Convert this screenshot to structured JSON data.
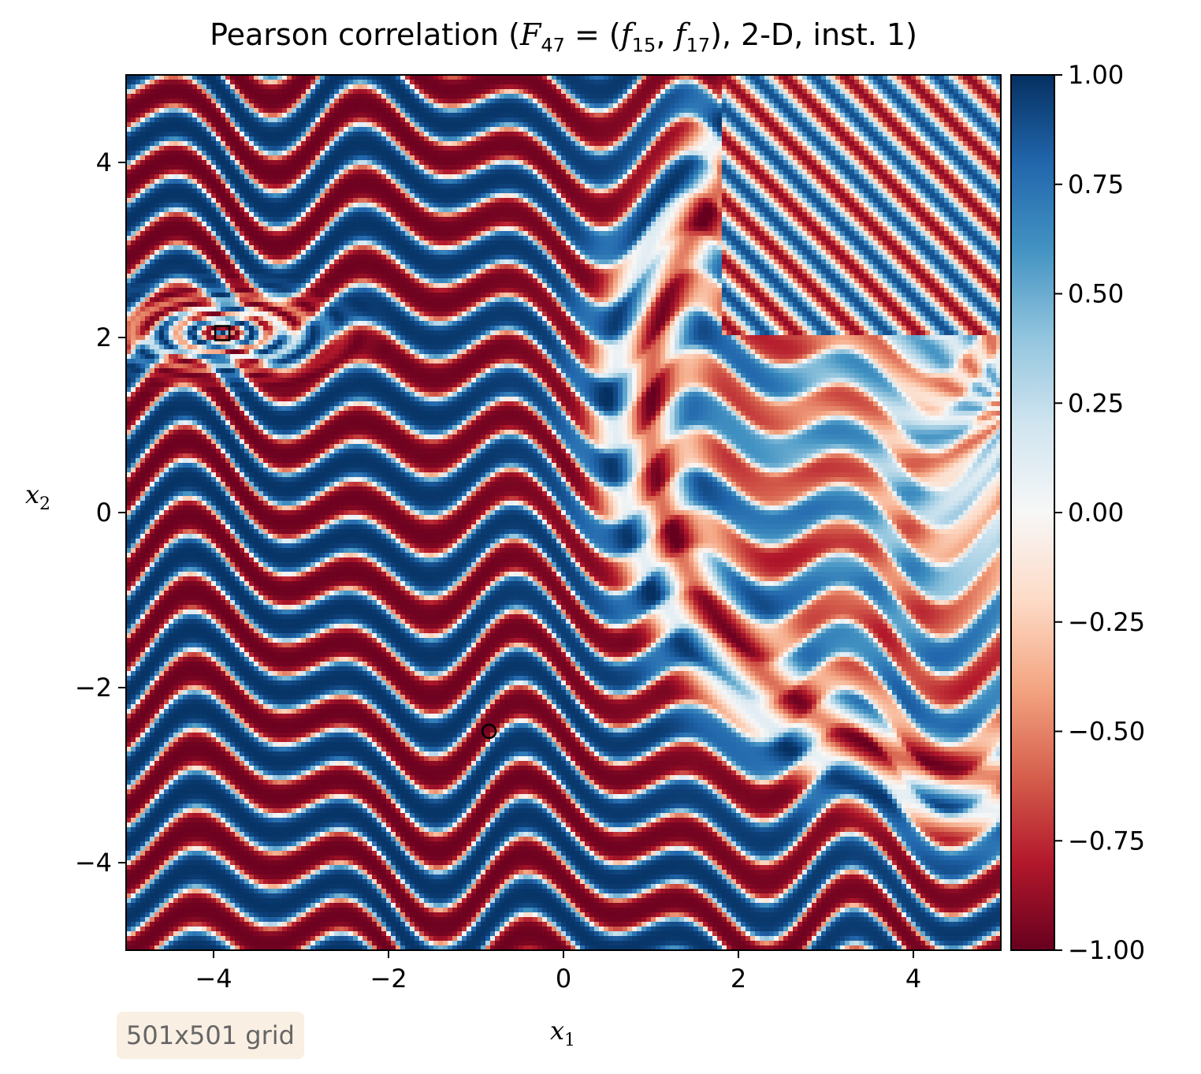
{
  "chart_data": {
    "type": "heatmap",
    "title": {
      "prefix": "Pearson correlation (",
      "F": "F",
      "F_sub": "47",
      "f1": "f",
      "f1_sub": "15",
      "f2": "f",
      "f2_sub": "17",
      "suffix": "), 2-D, inst. 1)"
    },
    "xlabel": {
      "symbol": "x",
      "sub": "1"
    },
    "ylabel": {
      "symbol": "x",
      "sub": "2"
    },
    "xlim": [
      -5,
      5
    ],
    "ylim": [
      -5,
      5
    ],
    "xticks": [
      -4,
      -2,
      0,
      2,
      4
    ],
    "xtick_labels": [
      "−4",
      "−2",
      "0",
      "2",
      "4"
    ],
    "yticks": [
      -4,
      -2,
      0,
      2,
      4
    ],
    "ytick_labels": [
      "−4",
      "−2",
      "0",
      "2",
      "4"
    ],
    "colorbar": {
      "range": [
        -1,
        1
      ],
      "ticks": [
        1.0,
        0.75,
        0.5,
        0.25,
        0.0,
        -0.25,
        -0.5,
        -0.75,
        -1.0
      ],
      "tick_labels": [
        "1.00",
        "0.75",
        "0.50",
        "0.25",
        "0.00",
        "−0.25",
        "−0.50",
        "−0.75",
        "−1.00"
      ],
      "colormap": "RdBu",
      "colormap_stops": [
        "#67001f",
        "#b2182b",
        "#d6604d",
        "#f4a582",
        "#fddbc7",
        "#f7f7f7",
        "#d1e5f0",
        "#92c5de",
        "#4393c3",
        "#2166ac",
        "#053061"
      ]
    },
    "markers": [
      {
        "shape": "square",
        "x": -3.9,
        "y": 2.05
      },
      {
        "shape": "circle",
        "x": -0.85,
        "y": -2.5
      }
    ],
    "grid": false
  },
  "annotation": {
    "text": "501x501 grid"
  }
}
